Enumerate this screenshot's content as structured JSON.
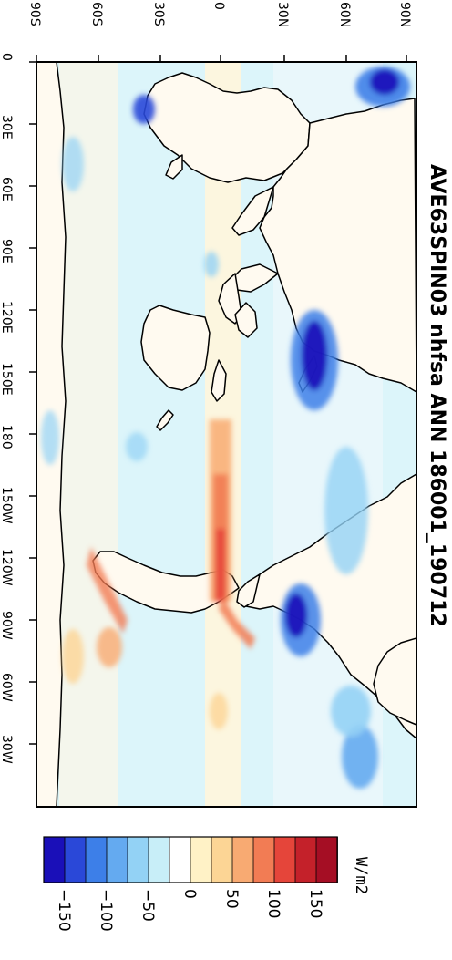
{
  "title": "AVE63SPIN03 nhfsa ANN 186001_190712",
  "units": "W/m2",
  "lat_labels": [
    "90S",
    "60S",
    "30S",
    "0",
    "30N",
    "60N",
    "90N"
  ],
  "lon_labels": [
    "0",
    "30E",
    "60E",
    "90E",
    "120E",
    "150E",
    "180",
    "150W",
    "120W",
    "90W",
    "60W",
    "30W"
  ],
  "colorbar": {
    "colors": [
      "#1a0fb8",
      "#2a48d8",
      "#3d7fe8",
      "#64aaf0",
      "#93d2f5",
      "#c8eef8",
      "#ffffff",
      "#fff2c6",
      "#fcd595",
      "#f8aa72",
      "#f27c54",
      "#e5453a",
      "#c4212a",
      "#a50e24"
    ],
    "labels": [
      "−150",
      "−100",
      "−50",
      "0",
      "50",
      "100",
      "150"
    ]
  },
  "map": {
    "ocean_color": "#dcf5fa",
    "coastline_color": "#000000"
  }
}
